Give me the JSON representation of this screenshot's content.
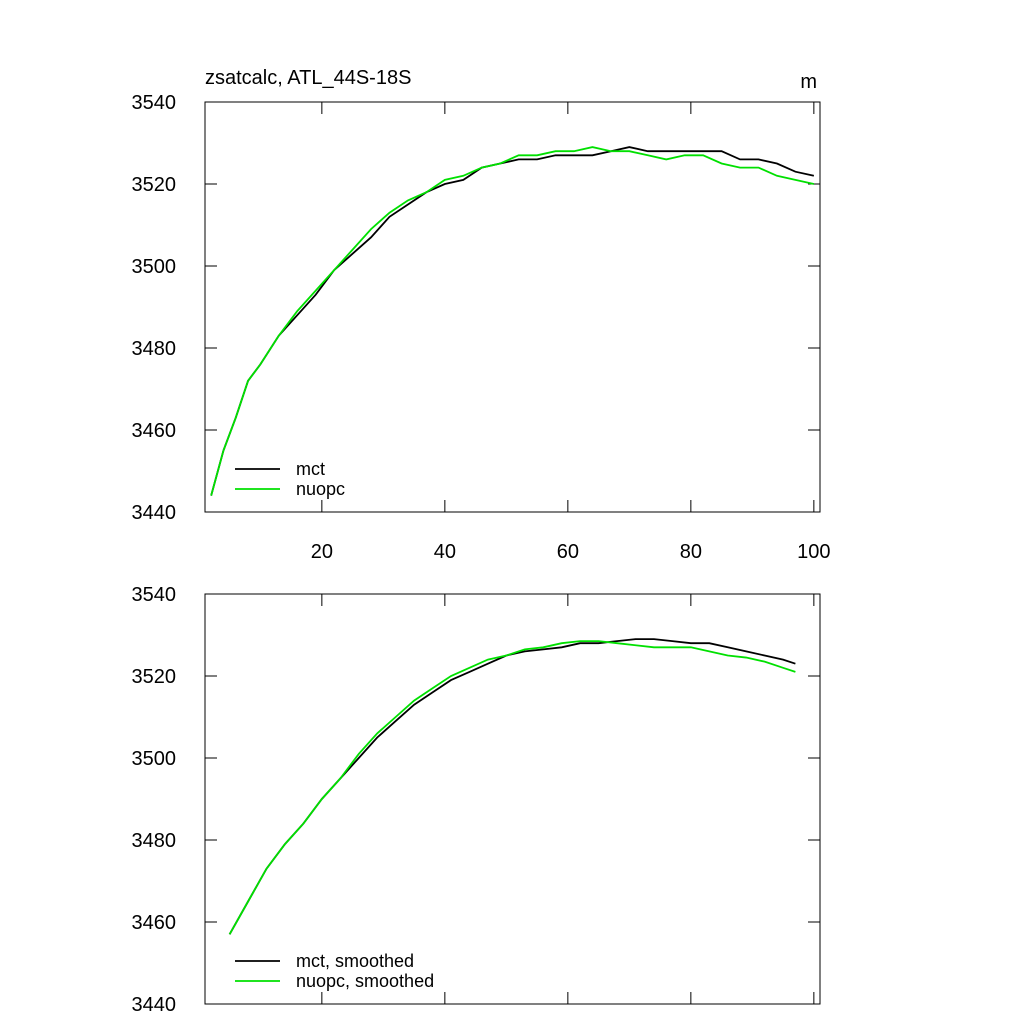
{
  "chart_data": [
    {
      "type": "line",
      "title": "zsatcalc, ATL_44S-18S",
      "units": "m",
      "x": [
        2,
        4,
        6,
        8,
        10,
        13,
        16,
        19,
        22,
        25,
        28,
        31,
        34,
        37,
        40,
        43,
        46,
        49,
        52,
        55,
        58,
        61,
        64,
        67,
        70,
        73,
        76,
        79,
        82,
        85,
        88,
        91,
        94,
        97,
        100
      ],
      "series": [
        {
          "name": "mct",
          "color": "#000000",
          "values": [
            3444,
            3455,
            3463,
            3472,
            3476,
            3483,
            3488,
            3493,
            3499,
            3503,
            3507,
            3512,
            3515,
            3518,
            3520,
            3521,
            3524,
            3525,
            3526,
            3526,
            3527,
            3527,
            3527,
            3528,
            3529,
            3528,
            3528,
            3528,
            3528,
            3528,
            3526,
            3526,
            3525,
            3523,
            3522
          ]
        },
        {
          "name": "nuopc",
          "color": "#00e000",
          "values": [
            3444,
            3455,
            3463,
            3472,
            3476,
            3483,
            3489,
            3494,
            3499,
            3504,
            3509,
            3513,
            3516,
            3518,
            3521,
            3522,
            3524,
            3525,
            3527,
            3527,
            3528,
            3528,
            3529,
            3528,
            3528,
            3527,
            3526,
            3527,
            3527,
            3525,
            3524,
            3524,
            3522,
            3521,
            3520
          ]
        }
      ],
      "xlim": [
        1,
        101
      ],
      "xticks": [
        20,
        40,
        60,
        80,
        100
      ],
      "ylim": [
        3440,
        3540
      ],
      "yticks": [
        3440,
        3460,
        3480,
        3500,
        3520,
        3540
      ]
    },
    {
      "type": "line",
      "x": [
        5,
        8,
        11,
        14,
        17,
        20,
        23,
        26,
        29,
        32,
        35,
        38,
        41,
        44,
        47,
        50,
        53,
        56,
        59,
        62,
        65,
        68,
        71,
        74,
        77,
        80,
        83,
        86,
        89,
        92,
        95,
        97
      ],
      "series": [
        {
          "name": "mct, smoothed",
          "color": "#000000",
          "values": [
            3457,
            3465,
            3473,
            3479,
            3484,
            3490,
            3495,
            3500,
            3505,
            3509,
            3513,
            3516,
            3519,
            3521,
            3523,
            3525,
            3526,
            3526.5,
            3527,
            3528,
            3528,
            3528.5,
            3529,
            3529,
            3528.5,
            3528,
            3528,
            3527,
            3526,
            3525,
            3524,
            3523
          ]
        },
        {
          "name": "nuopc, smoothed",
          "color": "#00e000",
          "values": [
            3457,
            3465,
            3473,
            3479,
            3484,
            3490,
            3495,
            3501,
            3506,
            3510,
            3514,
            3517,
            3520,
            3522,
            3524,
            3525,
            3526.5,
            3527,
            3528,
            3528.5,
            3528.5,
            3528,
            3527.5,
            3527,
            3527,
            3527,
            3526,
            3525,
            3524.5,
            3523.5,
            3522,
            3521
          ]
        }
      ],
      "xlim": [
        1,
        101
      ],
      "xticks": [
        20,
        40,
        60,
        80,
        100
      ],
      "ylim": [
        3440,
        3540
      ],
      "yticks": [
        3440,
        3460,
        3480,
        3500,
        3520,
        3540
      ]
    }
  ]
}
